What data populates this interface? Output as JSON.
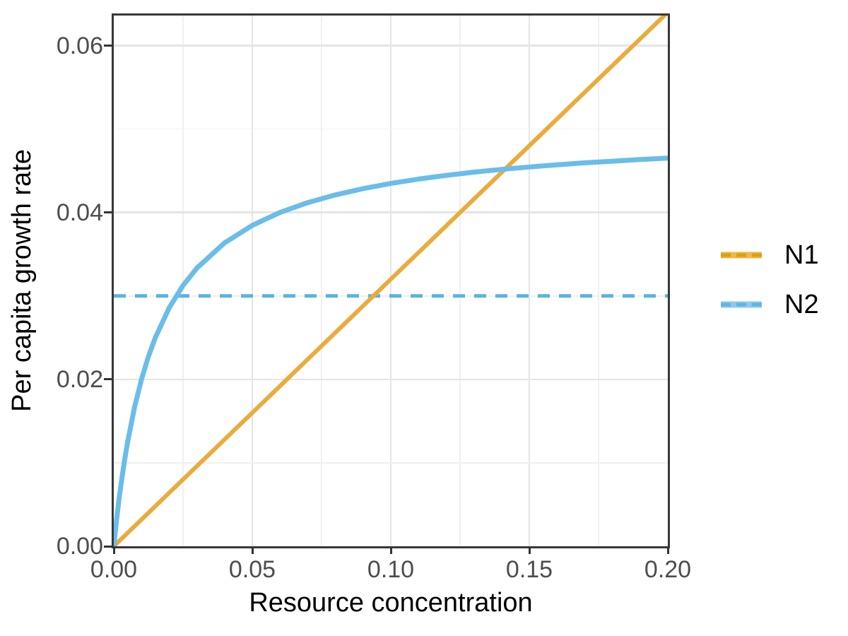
{
  "figure": {
    "background_color": "#FFFFFF",
    "panel_border_color": "#383838",
    "gridline_major_color": "#E5E5E5",
    "gridline_minor_color": "#F0F0F0",
    "tick_color": "#333333",
    "tick_label_color": "#4D4D4D",
    "axis_title_color": "#000000"
  },
  "chart_data": {
    "type": "line",
    "title": "",
    "xlabel": "Resource concentration",
    "ylabel": "Per capita growth rate",
    "x_range": [
      0,
      0.2
    ],
    "y_range": [
      0,
      0.0636
    ],
    "x_major_ticks": [
      0,
      0.05,
      0.1,
      0.15,
      0.2
    ],
    "x_tick_labels": [
      "0.00",
      "0.05",
      "0.10",
      "0.15",
      "0.20"
    ],
    "x_minor_ticks": [
      0.025,
      0.075,
      0.125,
      0.175
    ],
    "y_major_ticks": [
      0,
      0.02,
      0.04,
      0.06
    ],
    "y_tick_labels": [
      "0.00",
      "0.02",
      "0.04",
      "0.06"
    ],
    "y_minor_ticks": [
      0.01,
      0.03,
      0.05
    ],
    "grid": true,
    "legend_position": "right",
    "x": [
      0,
      0.0005,
      0.001,
      0.0015,
      0.002,
      0.003,
      0.004,
      0.005,
      0.0075,
      0.01,
      0.0125,
      0.015,
      0.02,
      0.025,
      0.03,
      0.04,
      0.05,
      0.06,
      0.07,
      0.08,
      0.09,
      0.1,
      0.11,
      0.12,
      0.13,
      0.14,
      0.15,
      0.16,
      0.17,
      0.18,
      0.19,
      0.2
    ],
    "series": [
      {
        "name": "N1",
        "style": "solid",
        "color": "#EBAB3B",
        "stroke_width": 6,
        "legend_key_base": "#EEB84A",
        "legend_key_dash": "#E09E0E",
        "values": [
          0,
          0.00016,
          0.00032,
          0.00048,
          0.00064,
          0.00096,
          0.00128,
          0.0016,
          0.0024,
          0.0032,
          0.004,
          0.0048,
          0.0064,
          0.008,
          0.0096,
          0.0128,
          0.016,
          0.0192,
          0.0224,
          0.0256,
          0.0288,
          0.032,
          0.0352,
          0.0384,
          0.0416,
          0.0448,
          0.048,
          0.0512,
          0.0544,
          0.0576,
          0.0608,
          0.064
        ]
      },
      {
        "name": "N2",
        "style": "solid",
        "color": "#6ABDEA",
        "stroke_width": 7,
        "legend_key_base": "#8DC9EE",
        "legend_key_dash": "#5FB5E8",
        "values": [
          0,
          0.00161,
          0.00313,
          0.00455,
          0.00588,
          0.00833,
          0.01053,
          0.0125,
          0.01667,
          0.02,
          0.02273,
          0.025,
          0.02857,
          0.03125,
          0.03333,
          0.03636,
          0.03846,
          0.04,
          0.04118,
          0.04211,
          0.04286,
          0.04348,
          0.044,
          0.04444,
          0.04483,
          0.04516,
          0.04545,
          0.04571,
          0.04595,
          0.04615,
          0.04634,
          0.04651
        ]
      }
    ],
    "reference_line": {
      "y": 0.03,
      "style": "dashed",
      "color": "#5BB2E3",
      "stroke_width": 5,
      "dash_pattern": [
        17,
        13
      ]
    },
    "legend": {
      "entries": [
        "N1",
        "N2"
      ]
    }
  }
}
